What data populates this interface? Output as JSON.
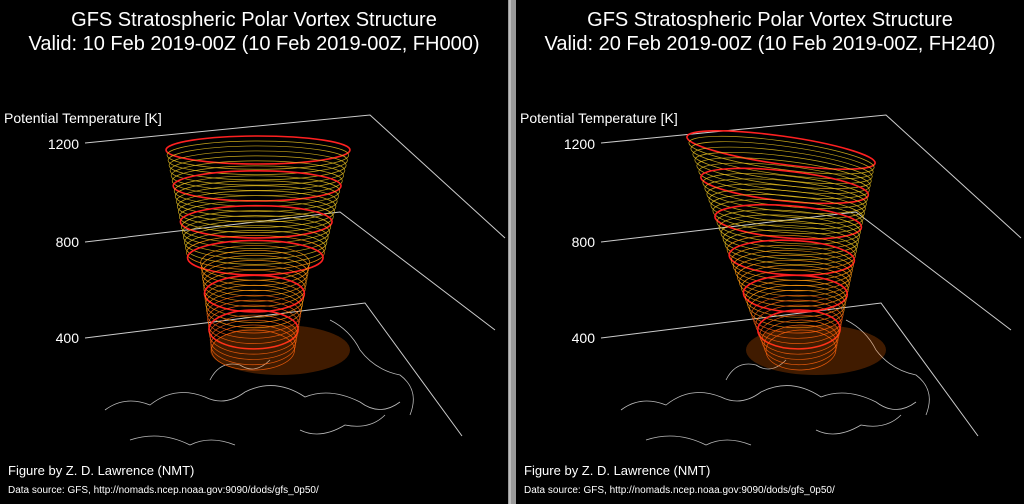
{
  "panels": [
    {
      "title": "GFS Stratospheric Polar Vortex Structure",
      "subtitle": "Valid: 10 Feb 2019-00Z  (10 Feb 2019-00Z, FH000)",
      "axis_label": "Potential Temperature [K]",
      "ticks": [
        "1200",
        "800",
        "400"
      ],
      "credit": "Figure by Z. D. Lawrence (NMT)",
      "source": "Data source: GFS, http://nomads.ncep.noaa.gov:9090/dods/gfs_0p50/"
    },
    {
      "title": "GFS Stratospheric Polar Vortex Structure",
      "subtitle": "Valid: 20 Feb 2019-00Z  (10 Feb 2019-00Z, FH240)",
      "axis_label": "Potential Temperature [K]",
      "ticks": [
        "1200",
        "800",
        "400"
      ],
      "credit": "Figure by Z. D. Lawrence (NMT)",
      "source": "Data source: GFS, http://nomads.ncep.noaa.gov:9090/dods/gfs_0p50/"
    }
  ]
}
